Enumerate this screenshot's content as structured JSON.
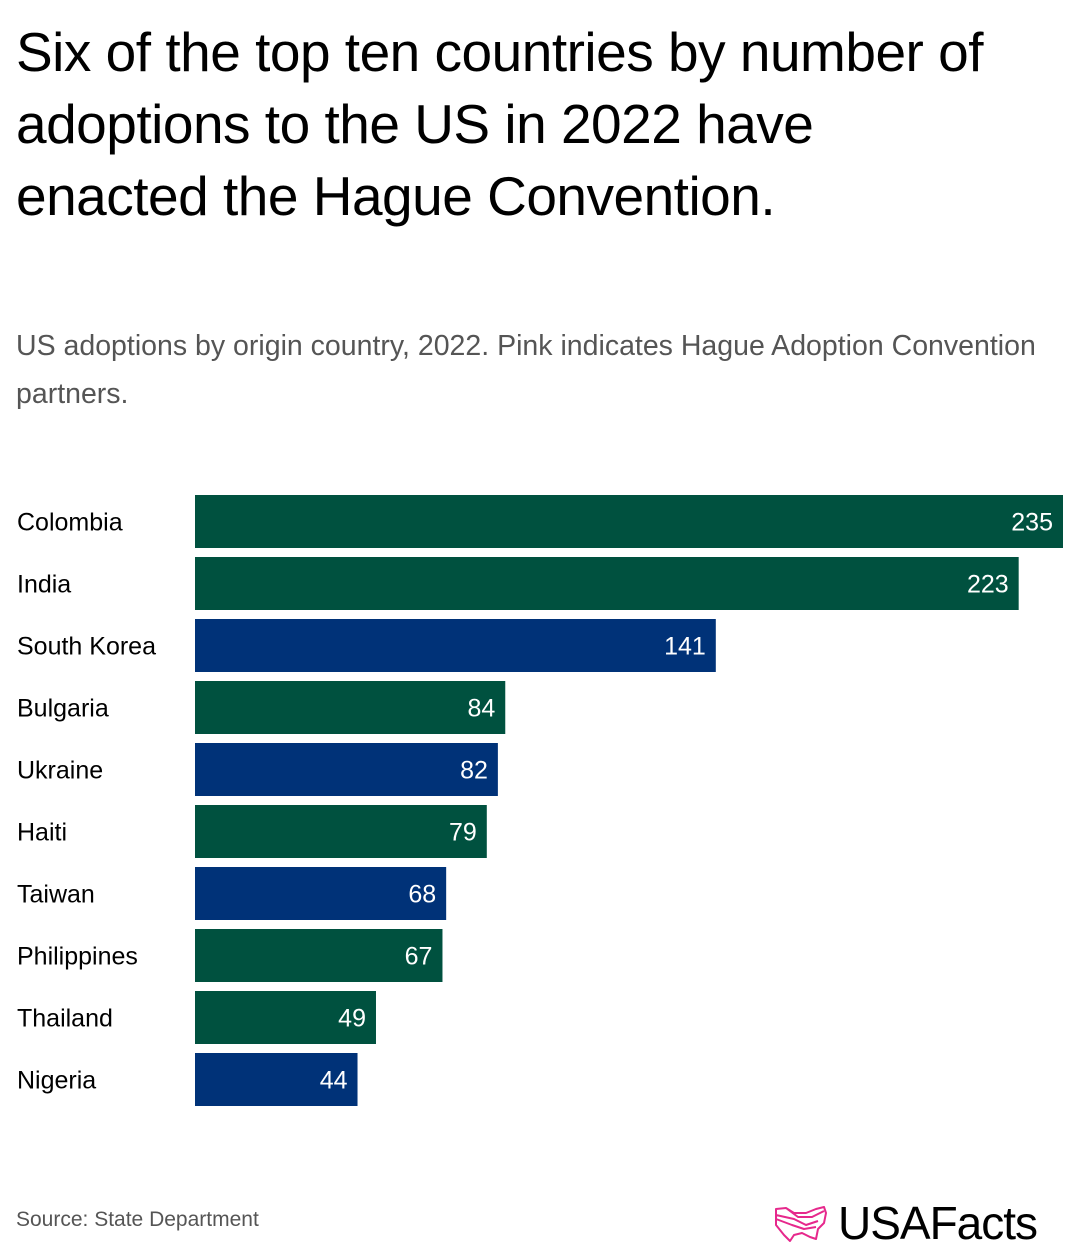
{
  "chart_data": {
    "type": "bar",
    "orientation": "horizontal",
    "title": "Six of the top ten countries by number of adoptions to the US in 2022 have enacted the Hague Convention.",
    "subtitle": "US adoptions by origin country, 2022. Pink indicates Hague Adoption Convention partners.",
    "categories": [
      "Colombia",
      "India",
      "South Korea",
      "Bulgaria",
      "Ukraine",
      "Haiti",
      "Taiwan",
      "Philippines",
      "Thailand",
      "Nigeria"
    ],
    "values": [
      235,
      223,
      141,
      84,
      82,
      79,
      68,
      67,
      49,
      44
    ],
    "bar_colors": [
      "#00513F",
      "#00513F",
      "#003278",
      "#00513F",
      "#003278",
      "#00513F",
      "#003278",
      "#00513F",
      "#00513F",
      "#003278"
    ],
    "xlim": [
      0,
      235
    ],
    "grid": false,
    "data_labels": true
  },
  "footer": {
    "source": "Source: State Department",
    "logo_text": "USAFacts",
    "logo_color": "#E6288C"
  }
}
